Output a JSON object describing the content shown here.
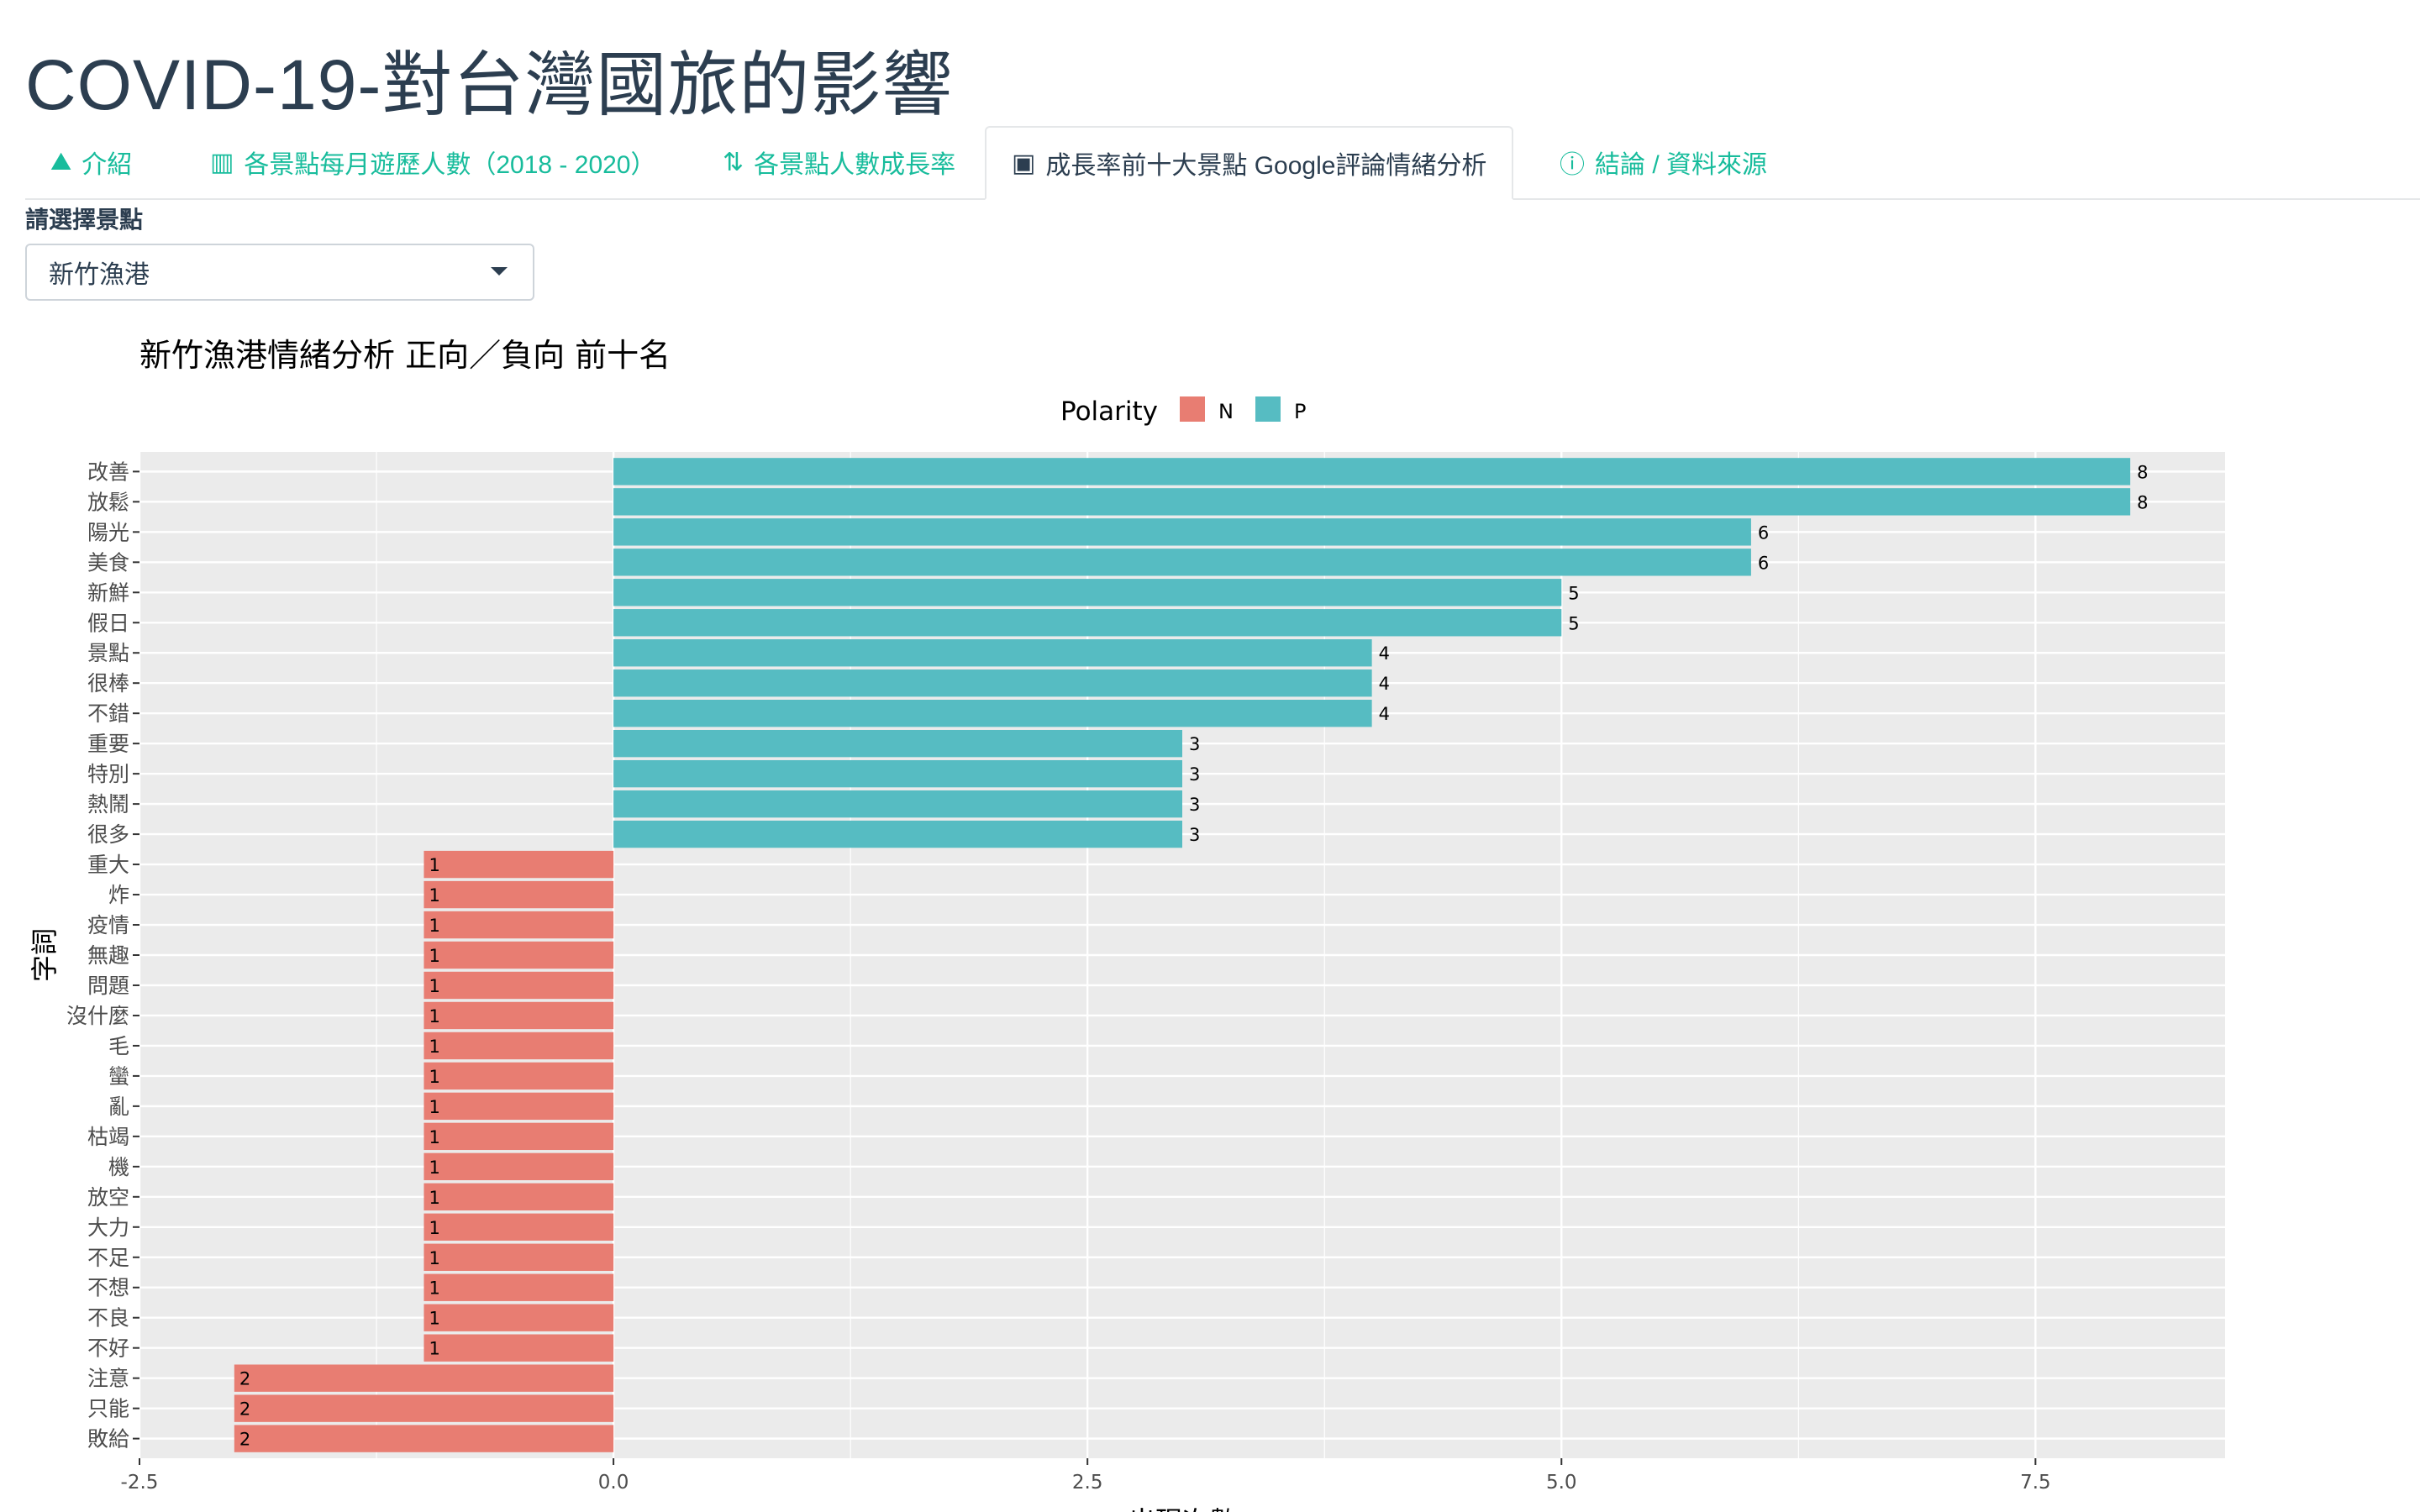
{
  "app": {
    "title": "COVID-19-對台灣國旅的影響"
  },
  "tabs": [
    {
      "label": "介紹",
      "icon": "map-icon"
    },
    {
      "label": "各景點每月遊歷人數（2018 - 2020）",
      "icon": "bar-chart-icon"
    },
    {
      "label": "各景點人數成長率",
      "icon": "sort-numeric-up-icon"
    },
    {
      "label": "成長率前十大景點 Google評論情緒分析",
      "icon": "language-icon"
    },
    {
      "label": "結論 / 資料來源",
      "icon": "info-circle-icon"
    }
  ],
  "select": {
    "label": "請選擇景點",
    "value": "新竹漁港"
  },
  "colors": {
    "negative": "#e87d72",
    "positive": "#56bcc2",
    "panel_bg": "#ebebeb",
    "grid": "#ffffff"
  },
  "chart_data": {
    "type": "bar",
    "orientation": "horizontal",
    "title": "新竹漁港情緒分析  正向／負向  前十名",
    "legend": {
      "title": "Polarity",
      "entries": [
        "N",
        "P"
      ],
      "position": "top"
    },
    "xlabel": "出現次數",
    "ylabel": "字詞",
    "xlim": [
      -2.5,
      8.5
    ],
    "xticks": [
      "-2.5",
      "0.0",
      "2.5",
      "5.0",
      "7.5"
    ],
    "categories": [
      "改善",
      "放鬆",
      "陽光",
      "美食",
      "新鮮",
      "假日",
      "景點",
      "很棒",
      "不錯",
      "重要",
      "特別",
      "熱鬧",
      "很多",
      "重大",
      "炸",
      "疫情",
      "無趣",
      "問題",
      "沒什麼",
      "毛",
      "蠻",
      "亂",
      "枯竭",
      "機",
      "放空",
      "大力",
      "不足",
      "不想",
      "不良",
      "不好",
      "注意",
      "只能",
      "敗給"
    ],
    "values": [
      8,
      8,
      6,
      6,
      5,
      5,
      4,
      4,
      4,
      3,
      3,
      3,
      3,
      -1,
      -1,
      -1,
      -1,
      -1,
      -1,
      -1,
      -1,
      -1,
      -1,
      -1,
      -1,
      -1,
      -1,
      -1,
      -1,
      -1,
      -2,
      -2,
      -2
    ],
    "polarity": [
      "P",
      "P",
      "P",
      "P",
      "P",
      "P",
      "P",
      "P",
      "P",
      "P",
      "P",
      "P",
      "P",
      "N",
      "N",
      "N",
      "N",
      "N",
      "N",
      "N",
      "N",
      "N",
      "N",
      "N",
      "N",
      "N",
      "N",
      "N",
      "N",
      "N",
      "N",
      "N",
      "N"
    ],
    "labels": [
      "8",
      "8",
      "6",
      "6",
      "5",
      "5",
      "4",
      "4",
      "4",
      "3",
      "3",
      "3",
      "3",
      "1",
      "1",
      "1",
      "1",
      "1",
      "1",
      "1",
      "1",
      "1",
      "1",
      "1",
      "1",
      "1",
      "1",
      "1",
      "1",
      "1",
      "2",
      "2",
      "2"
    ],
    "grid": true
  }
}
